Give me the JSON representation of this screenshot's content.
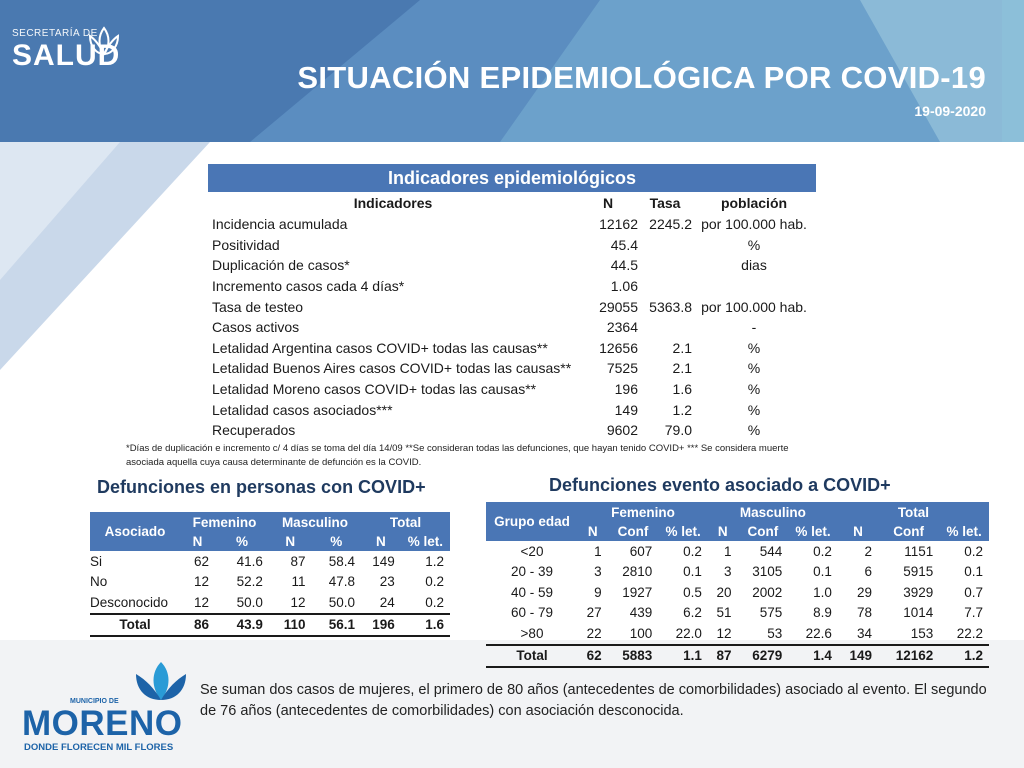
{
  "header": {
    "title": "SITUACIÓN EPIDEMIOLÓGICA POR COVID-19",
    "date": "19-09-2020",
    "logo_secretaria": "SECRETARÍA DE",
    "logo_salud": "SALUD"
  },
  "indicators": {
    "band_title": "Indicadores epidemiológicos",
    "headers": [
      "Indicadores",
      "N",
      "Tasa",
      "población"
    ],
    "rows": [
      {
        "label": "Incidencia acumulada",
        "n": "12162",
        "tasa": "2245.2",
        "pob": "por 100.000 hab."
      },
      {
        "label": "Positividad",
        "n": "45.4",
        "tasa": "",
        "pob": "%"
      },
      {
        "label": "Duplicación de casos*",
        "n": "44.5",
        "tasa": "",
        "pob": "dias"
      },
      {
        "label": "Incremento casos cada 4 días*",
        "n": "1.06",
        "tasa": "",
        "pob": ""
      },
      {
        "label": "Tasa de testeo",
        "n": "29055",
        "tasa": "5363.8",
        "pob": "por 100.000 hab."
      },
      {
        "label": "Casos activos",
        "n": "2364",
        "tasa": "",
        "pob": "-"
      },
      {
        "label": "Letalidad Argentina casos COVID+ todas las causas**",
        "n": "12656",
        "tasa": "2.1",
        "pob": "%"
      },
      {
        "label": "Letalidad Buenos Aires casos COVID+ todas las causas**",
        "n": "7525",
        "tasa": "2.1",
        "pob": "%"
      },
      {
        "label": "Letalidad Moreno casos COVID+ todas las causas**",
        "n": "196",
        "tasa": "1.6",
        "pob": "%"
      },
      {
        "label": "Letalidad casos asociados***",
        "n": "149",
        "tasa": "1.2",
        "pob": "%"
      },
      {
        "label": "Recuperados",
        "n": "9602",
        "tasa": "79.0",
        "pob": "%"
      }
    ],
    "footnote_line1": "*Días de duplicación e incremento c/ 4 días se toma del día 14/09 **Se consideran todas las defunciones, que hayan tenido COVID+ *** Se considera muerte",
    "footnote_line2": "asociada aquella cuya causa determinante de defunción es la COVID."
  },
  "def_personas": {
    "title": "Defunciones en personas con COVID+",
    "col_group": "Asociado",
    "groups": [
      "Femenino",
      "Masculino",
      "Total"
    ],
    "subheaders": [
      "N",
      "%",
      "N",
      "%",
      "N",
      "% let."
    ],
    "rows": [
      {
        "label": "Si",
        "v": [
          "62",
          "41.6",
          "87",
          "58.4",
          "149",
          "1.2"
        ]
      },
      {
        "label": "No",
        "v": [
          "12",
          "52.2",
          "11",
          "47.8",
          "23",
          "0.2"
        ]
      },
      {
        "label": "Desconocido",
        "v": [
          "12",
          "50.0",
          "12",
          "50.0",
          "24",
          "0.2"
        ]
      }
    ],
    "total": {
      "label": "Total",
      "v": [
        "86",
        "43.9",
        "110",
        "56.1",
        "196",
        "1.6"
      ]
    }
  },
  "def_evento": {
    "title": "Defunciones evento asociado a COVID+",
    "col_group": "Grupo edad",
    "groups": [
      "Femenino",
      "Masculino",
      "Total"
    ],
    "subheaders": [
      "N",
      "Conf",
      "% let.",
      "N",
      "Conf",
      "% let.",
      "N",
      "Conf",
      "% let."
    ],
    "rows": [
      {
        "label": "<20",
        "v": [
          "1",
          "607",
          "0.2",
          "1",
          "544",
          "0.2",
          "2",
          "1151",
          "0.2"
        ]
      },
      {
        "label": "20 - 39",
        "v": [
          "3",
          "2810",
          "0.1",
          "3",
          "3105",
          "0.1",
          "6",
          "5915",
          "0.1"
        ]
      },
      {
        "label": "40 - 59",
        "v": [
          "9",
          "1927",
          "0.5",
          "20",
          "2002",
          "1.0",
          "29",
          "3929",
          "0.7"
        ]
      },
      {
        "label": "60 - 79",
        "v": [
          "27",
          "439",
          "6.2",
          "51",
          "575",
          "8.9",
          "78",
          "1014",
          "7.7"
        ]
      },
      {
        "label": ">80",
        "v": [
          "22",
          "100",
          "22.0",
          "12",
          "53",
          "22.6",
          "34",
          "153",
          "22.2"
        ]
      }
    ],
    "total": {
      "label": "Total",
      "v": [
        "62",
        "5883",
        "1.1",
        "87",
        "6279",
        "1.4",
        "149",
        "12162",
        "1.2"
      ]
    }
  },
  "note": "Se suman dos casos de mujeres, el primero de 80 años (antecedentes de comorbilidades) asociado al evento. El segundo de 76 años (antecedentes de comorbilidades) con asociación desconocida.",
  "moreno_logo": {
    "top": "MUNICIPIO DE",
    "main": "MORENO",
    "tagline": "DONDE FLORECEN MIL FLORES"
  }
}
